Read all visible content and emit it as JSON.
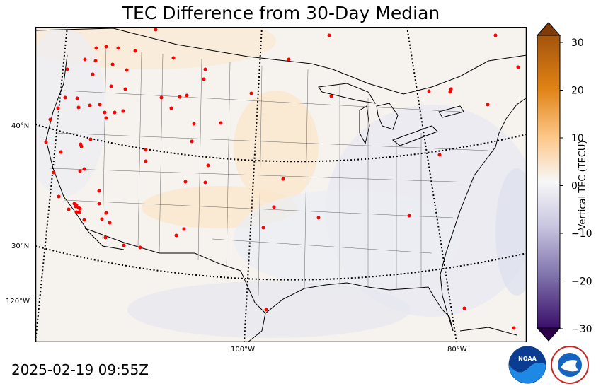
{
  "title": "TEC Difference from 30-Day Median",
  "timestamp": "2025-02-19 09:55Z",
  "lat_labels": {
    "l40": "40°N",
    "l30": "30°N"
  },
  "lon_labels": {
    "w120": "120°W",
    "w100": "100°W",
    "w80": "80°W"
  },
  "colorbar": {
    "label": "Vertical TEC (TECU)",
    "ticks": [
      "30",
      "20",
      "10",
      "0",
      "−10",
      "−20",
      "−30"
    ],
    "colors": {
      "max": "#7f3b08",
      "mid": "#f7f7f7",
      "min": "#2d004b"
    }
  },
  "logos": {
    "noaa": "NOAA",
    "nws": "NATIONAL WEATHER SERVICE"
  },
  "map_colors": {
    "land_background": "#f7f3ef",
    "positive_blob": "#fbe8cf",
    "negative_blob": "#e3e5ef",
    "station": "#ff0000"
  }
}
